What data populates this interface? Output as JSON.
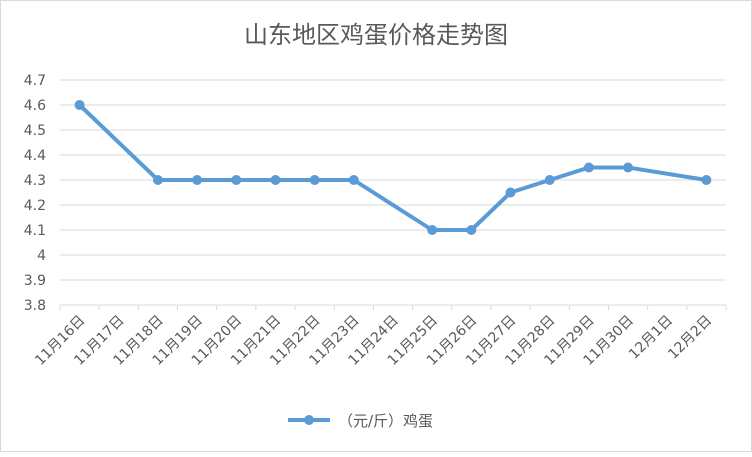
{
  "chart_data": {
    "type": "line",
    "title": "山东地区鸡蛋价格走势图",
    "xlabel": "",
    "ylabel": "",
    "categories": [
      "11月16日",
      "11月17日",
      "11月18日",
      "11月19日",
      "11月20日",
      "11月21日",
      "11月22日",
      "11月23日",
      "11月24日",
      "11月25日",
      "11月26日",
      "11月27日",
      "11月28日",
      "11月29日",
      "11月30日",
      "12月1日",
      "12月2日"
    ],
    "series": [
      {
        "name": "（元/斤）鸡蛋",
        "color": "#5b9bd5",
        "values": [
          4.6,
          null,
          4.3,
          4.3,
          4.3,
          4.3,
          4.3,
          4.3,
          null,
          4.1,
          4.1,
          4.25,
          4.3,
          4.35,
          4.35,
          null,
          4.3
        ]
      }
    ],
    "ylim": [
      3.8,
      4.7
    ],
    "yticks": [
      "3.8",
      "3.9",
      "4",
      "4.1",
      "4.2",
      "4.3",
      "4.4",
      "4.5",
      "4.6",
      "4.7"
    ],
    "grid": true,
    "legend_position": "bottom"
  }
}
